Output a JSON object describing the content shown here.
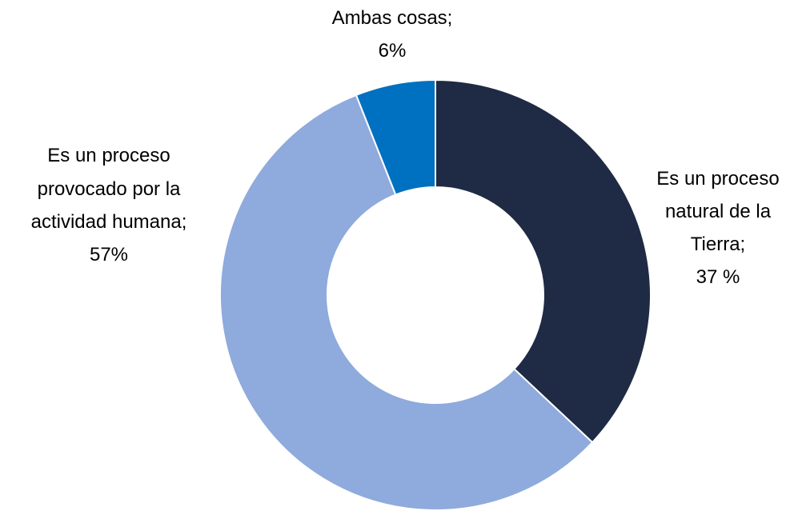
{
  "chart_data": {
    "type": "pie",
    "variant": "donut",
    "legend": "none",
    "slices": [
      {
        "label_lines": [
          "Es un proceso",
          "natural de la",
          "Tierra;",
          "37 %"
        ],
        "value": 37,
        "color": "#1f2a44"
      },
      {
        "label_lines": [
          "Es un proceso",
          "provocado por la",
          "actividad humana;",
          "57%"
        ],
        "value": 57,
        "color": "#8faadc"
      },
      {
        "label_lines": [
          "Ambas cosas;",
          "6%"
        ],
        "value": 6,
        "color": "#0070c0"
      }
    ]
  }
}
